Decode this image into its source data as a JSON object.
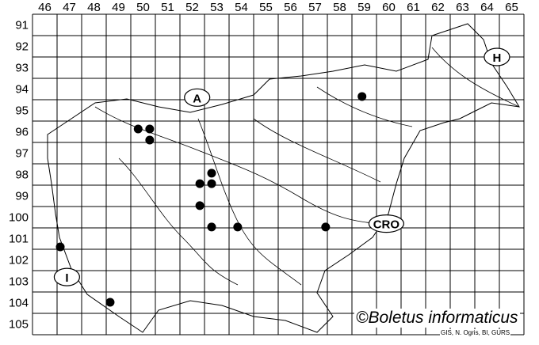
{
  "columns": [
    "46",
    "47",
    "48",
    "49",
    "50",
    "51",
    "52",
    "53",
    "54",
    "55",
    "56",
    "57",
    "58",
    "59",
    "60",
    "61",
    "62",
    "63",
    "64",
    "65"
  ],
  "rows": [
    "91",
    "92",
    "93",
    "94",
    "95",
    "96",
    "97",
    "98",
    "99",
    "100",
    "101",
    "102",
    "103",
    "104",
    "105"
  ],
  "country_labels": [
    {
      "text": "A",
      "col": 52.2,
      "row": 94.4
    },
    {
      "text": "H",
      "col": 64.4,
      "row": 92.5
    },
    {
      "text": "CRO",
      "col": 59.9,
      "row": 100.3
    },
    {
      "text": "I",
      "col": 46.9,
      "row": 102.8
    }
  ],
  "records": [
    {
      "col": 49.8,
      "row": 95.87
    },
    {
      "col": 50.27,
      "row": 95.87
    },
    {
      "col": 50.27,
      "row": 96.39
    },
    {
      "col": 52.79,
      "row": 97.94
    },
    {
      "col": 52.31,
      "row": 98.43
    },
    {
      "col": 52.79,
      "row": 98.43
    },
    {
      "col": 52.31,
      "row": 99.46
    },
    {
      "col": 52.79,
      "row": 100.46
    },
    {
      "col": 53.85,
      "row": 100.46
    },
    {
      "col": 57.43,
      "row": 100.46
    },
    {
      "col": 58.91,
      "row": 94.35
    },
    {
      "col": 46.63,
      "row": 101.39
    },
    {
      "col": 48.66,
      "row": 103.98
    }
  ],
  "copyright": "©Boletus informaticus",
  "credit": "GIS, N. Ogris, BI, GURS",
  "colors": {
    "line": "#000000",
    "dot": "#000000",
    "background": "#ffffff"
  }
}
